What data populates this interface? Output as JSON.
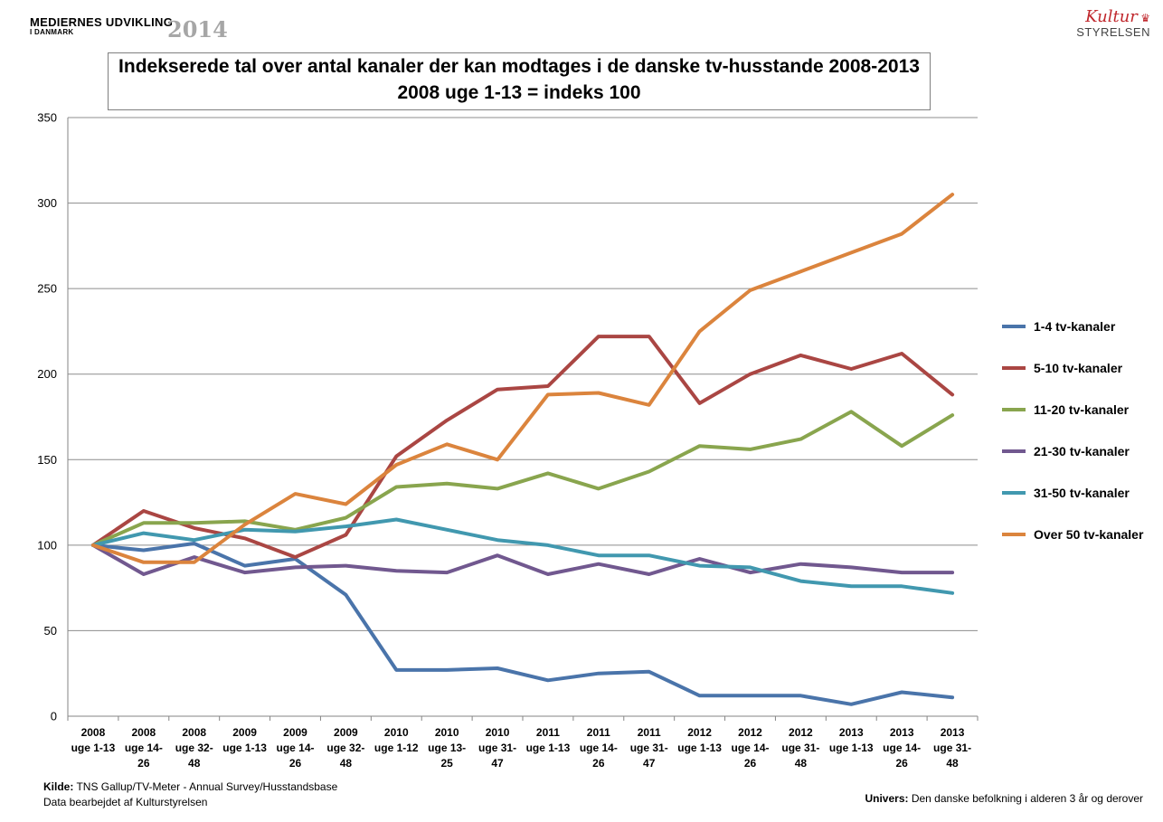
{
  "header": {
    "brand_line1": "MEDIERNES UDVIKLING",
    "brand_line2": "I DANMARK",
    "brand_year": "2014",
    "logo_top": "Kultur",
    "logo_bottom": "STYRELSEN"
  },
  "footer": {
    "source_label": "Kilde:",
    "source_text": " TNS Gallup/TV-Meter -  Annual Survey/Husstandsbase",
    "processed": "Data bearbejdet af  Kulturstyrelsen",
    "univers_label": "Univers:",
    "univers_text": "  Den danske befolkning i alderen 3 år og derover"
  },
  "chart_data": {
    "type": "line",
    "title_line1": "Indekserede tal over antal kanaler der kan modtages i de danske tv-husstande 2008-2013",
    "title_line2": "2008 uge 1-13 = indeks 100",
    "ylim": [
      0,
      350
    ],
    "yticks": [
      0,
      50,
      100,
      150,
      200,
      250,
      300,
      350
    ],
    "grid": true,
    "legend_position": "right",
    "categories": [
      [
        "2008",
        "uge 1-13"
      ],
      [
        "2008",
        "uge 14-",
        "26"
      ],
      [
        "2008",
        "uge 32-",
        "48"
      ],
      [
        "2009",
        "uge 1-13"
      ],
      [
        "2009",
        "uge 14-",
        "26"
      ],
      [
        "2009",
        "uge 32-",
        "48"
      ],
      [
        "2010",
        "uge 1-12"
      ],
      [
        "2010",
        "uge 13-",
        "25"
      ],
      [
        "2010",
        "uge 31-",
        "47"
      ],
      [
        "2011",
        "uge 1-13"
      ],
      [
        "2011",
        "uge 14-",
        "26"
      ],
      [
        "2011",
        "uge 31-",
        "47"
      ],
      [
        "2012",
        "uge 1-13"
      ],
      [
        "2012",
        "uge 14-",
        "26"
      ],
      [
        "2012",
        "uge 31-",
        "48"
      ],
      [
        "2013",
        "uge 1-13"
      ],
      [
        "2013",
        "uge 14-",
        "26"
      ],
      [
        "2013",
        "uge 31-",
        "48"
      ]
    ],
    "series": [
      {
        "name": "1-4 tv-kanaler",
        "color": "#4a74aa",
        "values": [
          100,
          97,
          101,
          88,
          92,
          71,
          27,
          27,
          28,
          21,
          25,
          26,
          12,
          12,
          12,
          7,
          14,
          11
        ]
      },
      {
        "name": "5-10 tv-kanaler",
        "color": "#aa4643",
        "values": [
          100,
          120,
          110,
          104,
          93,
          106,
          152,
          173,
          191,
          193,
          222,
          222,
          183,
          200,
          211,
          203,
          212,
          188
        ]
      },
      {
        "name": "11-20 tv-kanaler",
        "color": "#89a54e",
        "values": [
          100,
          113,
          113,
          114,
          109,
          116,
          134,
          136,
          133,
          142,
          133,
          143,
          158,
          156,
          162,
          178,
          158,
          176
        ]
      },
      {
        "name": "21-30 tv-kanaler",
        "color": "#71588f",
        "values": [
          100,
          83,
          93,
          84,
          87,
          88,
          85,
          84,
          94,
          83,
          89,
          83,
          92,
          84,
          89,
          87,
          84,
          84
        ]
      },
      {
        "name": "31-50 tv-kanaler",
        "color": "#4198af",
        "values": [
          100,
          107,
          103,
          109,
          108,
          111,
          115,
          109,
          103,
          100,
          94,
          94,
          88,
          87,
          79,
          76,
          76,
          72
        ]
      },
      {
        "name": "Over 50 tv-kanaler",
        "color": "#db843d",
        "values": [
          100,
          90,
          90,
          112,
          130,
          124,
          147,
          159,
          150,
          188,
          189,
          182,
          225,
          249,
          260,
          271,
          282,
          305
        ]
      }
    ]
  }
}
